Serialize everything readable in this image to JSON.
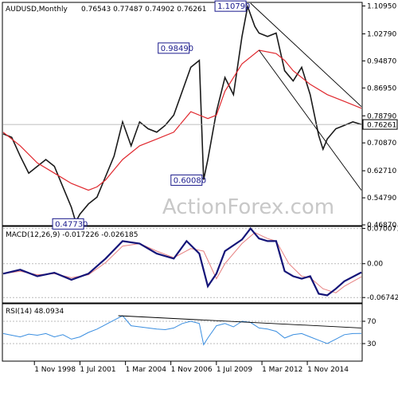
{
  "header": {
    "symbol": "AUDUSD,Monthly",
    "ohlc": "0.76543 0.77487 0.74902 0.76261"
  },
  "watermark": "ActionForex.com",
  "colors": {
    "price": "#1a1a1a",
    "ma": "#e0282e",
    "macd": "#141478",
    "signal": "#e68080",
    "rsi": "#3a8ee0",
    "trendline": "#000000",
    "label_border": "#1a1a8c"
  },
  "chart_data": [
    {
      "type": "line",
      "title": "AUDUSD,Monthly",
      "x_labels": [
        "1 Nov 1998",
        "1 Jul 2001",
        "1 Mar 2004",
        "1 Nov 2006",
        "1 Jul 2009",
        "1 Mar 2012",
        "1 Nov 2014"
      ],
      "x_label_positions": [
        1998.83,
        2001.5,
        2004.17,
        2006.83,
        2009.5,
        2012.17,
        2014.83
      ],
      "ylim": [
        0.4688,
        1.1176
      ],
      "y_ticks": [
        "1.10950",
        "1.02790",
        "0.94870",
        "0.86950",
        "0.78790",
        "0.70870",
        "0.62710",
        "0.54790",
        "0.46870"
      ],
      "y_tick_values": [
        1.1095,
        1.0279,
        0.9487,
        0.8695,
        0.7879,
        0.7087,
        0.6271,
        0.5479,
        0.4687
      ],
      "current_price": "0.76261",
      "annotations": [
        {
          "label": "1.10790",
          "x": 2011.33,
          "y": 1.1079
        },
        {
          "label": "0.98490",
          "x": 2008.0,
          "y": 0.9849
        },
        {
          "label": "0.60080",
          "x": 2008.75,
          "y": 0.6008
        },
        {
          "label": "0.47730",
          "x": 2001.25,
          "y": 0.4773
        }
      ],
      "series": [
        {
          "name": "AUDUSD",
          "x": [
            1997.0,
            1997.5,
            1998.0,
            1998.5,
            1999.0,
            1999.5,
            2000.0,
            2000.5,
            2001.0,
            2001.25,
            2001.5,
            2002.0,
            2002.5,
            2003.0,
            2003.5,
            2004.0,
            2004.5,
            2005.0,
            2005.5,
            2006.0,
            2006.5,
            2007.0,
            2007.5,
            2008.0,
            2008.5,
            2008.75,
            2009.0,
            2009.5,
            2010.0,
            2010.5,
            2011.0,
            2011.33,
            2011.75,
            2012.0,
            2012.5,
            2013.0,
            2013.5,
            2014.0,
            2014.5,
            2015.0,
            2015.5,
            2015.75,
            2016.0,
            2016.5,
            2017.0,
            2017.5,
            2018.0
          ],
          "values": [
            0.735,
            0.725,
            0.67,
            0.62,
            0.64,
            0.66,
            0.64,
            0.58,
            0.52,
            0.4773,
            0.5,
            0.53,
            0.55,
            0.61,
            0.67,
            0.77,
            0.7,
            0.77,
            0.75,
            0.74,
            0.76,
            0.79,
            0.86,
            0.93,
            0.95,
            0.6008,
            0.66,
            0.8,
            0.9,
            0.85,
            1.02,
            1.1079,
            1.05,
            1.03,
            1.02,
            1.03,
            0.92,
            0.89,
            0.93,
            0.85,
            0.73,
            0.69,
            0.72,
            0.75,
            0.76,
            0.77,
            0.76261
          ]
        },
        {
          "name": "MA",
          "x": [
            1997.0,
            1998.0,
            1999.0,
            2000.0,
            2001.0,
            2002.0,
            2002.5,
            2003.0,
            2003.5,
            2004.0,
            2005.0,
            2006.0,
            2007.0,
            2007.5,
            2008.0,
            2009.0,
            2009.5,
            2010.0,
            2011.0,
            2012.0,
            2013.0,
            2013.5,
            2014.0,
            2015.0,
            2016.0,
            2017.0,
            2018.0
          ],
          "values": [
            0.74,
            0.7,
            0.65,
            0.62,
            0.59,
            0.57,
            0.58,
            0.6,
            0.63,
            0.66,
            0.7,
            0.72,
            0.74,
            0.77,
            0.8,
            0.78,
            0.79,
            0.86,
            0.94,
            0.98,
            0.97,
            0.95,
            0.92,
            0.88,
            0.85,
            0.83,
            0.81
          ]
        }
      ],
      "trendlines": [
        {
          "x": [
            2011.5,
            2018.0
          ],
          "y": [
            1.1176,
            0.815
          ]
        },
        {
          "x": [
            2012.0,
            2018.0
          ],
          "y": [
            0.98,
            0.57
          ]
        }
      ]
    },
    {
      "type": "line",
      "title": "MACD(12,26,9) -0.017226 -0.026185",
      "ylim": [
        -0.0766,
        0.0726
      ],
      "y_ticks": [
        "0.070071",
        "0.00",
        "-0.067423"
      ],
      "y_tick_values": [
        0.070071,
        0.0,
        -0.067423
      ],
      "series": [
        {
          "name": "MACD",
          "x": [
            1997.0,
            1998.0,
            1999.0,
            2000.0,
            2001.0,
            2002.0,
            2003.0,
            2004.0,
            2005.0,
            2006.0,
            2007.0,
            2007.75,
            2008.5,
            2009.0,
            2009.5,
            2010.0,
            2011.0,
            2011.5,
            2012.0,
            2012.5,
            2013.0,
            2013.5,
            2014.0,
            2014.5,
            2015.0,
            2015.5,
            2016.0,
            2016.5,
            2017.0,
            2018.0
          ],
          "values": [
            -0.02,
            -0.012,
            -0.025,
            -0.018,
            -0.032,
            -0.02,
            0.01,
            0.045,
            0.04,
            0.02,
            0.01,
            0.045,
            0.02,
            -0.045,
            -0.02,
            0.025,
            0.048,
            0.07,
            0.05,
            0.045,
            0.045,
            -0.015,
            -0.025,
            -0.03,
            -0.025,
            -0.06,
            -0.063,
            -0.05,
            -0.035,
            -0.017226
          ]
        },
        {
          "name": "Signal",
          "x": [
            1997.0,
            1998.0,
            1999.0,
            2000.0,
            2001.0,
            2002.0,
            2003.0,
            2004.0,
            2005.0,
            2006.0,
            2007.0,
            2008.0,
            2008.75,
            2009.5,
            2010.0,
            2011.0,
            2011.75,
            2012.5,
            2013.0,
            2013.75,
            2014.5,
            2015.0,
            2015.75,
            2016.5,
            2017.0,
            2018.0
          ],
          "values": [
            -0.02,
            -0.015,
            -0.022,
            -0.02,
            -0.028,
            -0.022,
            0.002,
            0.035,
            0.04,
            0.025,
            0.012,
            0.03,
            0.025,
            -0.03,
            0.0,
            0.04,
            0.062,
            0.05,
            0.045,
            0.0,
            -0.025,
            -0.028,
            -0.05,
            -0.058,
            -0.045,
            -0.026185
          ]
        }
      ]
    },
    {
      "type": "line",
      "title": "RSI(14) 48.0934",
      "ylim": [
        0,
        100
      ],
      "y_ticks": [
        "70",
        "30"
      ],
      "y_tick_values": [
        70,
        30
      ],
      "series": [
        {
          "name": "RSI(14)",
          "x": [
            1997.0,
            1997.5,
            1998.0,
            1998.5,
            1999.0,
            1999.5,
            2000.0,
            2000.5,
            2001.0,
            2001.5,
            2002.0,
            2002.5,
            2003.0,
            2003.5,
            2004.0,
            2004.5,
            2005.0,
            2005.5,
            2006.0,
            2006.5,
            2007.0,
            2007.5,
            2008.0,
            2008.5,
            2008.75,
            2009.0,
            2009.5,
            2010.0,
            2010.5,
            2011.0,
            2011.5,
            2012.0,
            2012.5,
            2013.0,
            2013.5,
            2014.0,
            2014.5,
            2015.0,
            2015.5,
            2016.0,
            2016.5,
            2017.0,
            2017.5,
            2018.0
          ],
          "values": [
            48,
            45,
            42,
            47,
            45,
            48,
            42,
            46,
            38,
            42,
            50,
            56,
            64,
            72,
            80,
            62,
            60,
            58,
            56,
            55,
            58,
            66,
            70,
            66,
            28,
            40,
            62,
            66,
            60,
            70,
            68,
            58,
            56,
            52,
            40,
            46,
            48,
            42,
            36,
            30,
            38,
            46,
            48,
            48.0934
          ]
        }
      ],
      "trendlines": [
        {
          "x": [
            2003.75,
            2018.0
          ],
          "y": [
            80,
            58
          ]
        }
      ]
    }
  ]
}
